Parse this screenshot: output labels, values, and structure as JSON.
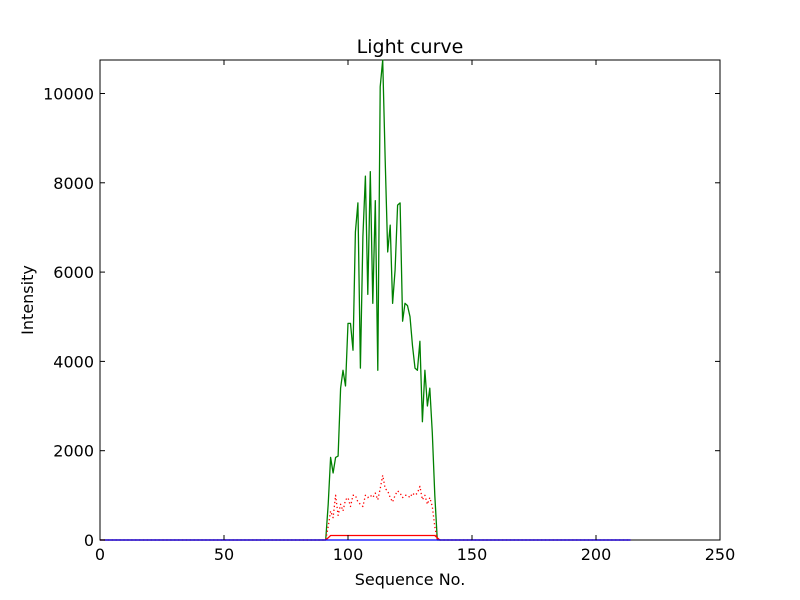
{
  "chart_data": {
    "type": "line",
    "title": "Light curve",
    "xlabel": "Sequence No.",
    "ylabel": "Intensity",
    "xlim": [
      0,
      250
    ],
    "ylim": [
      0,
      10750
    ],
    "xticks": [
      0,
      50,
      100,
      150,
      200,
      250
    ],
    "yticks": [
      0,
      2000,
      4000,
      6000,
      8000,
      10000
    ],
    "grid": false,
    "legend": "none",
    "series": [
      {
        "style": "solid",
        "color": "#008000",
        "x": [
          0,
          91,
          92,
          93,
          94,
          95,
          96,
          97,
          98,
          99,
          100,
          101,
          102,
          103,
          104,
          105,
          106,
          107,
          108,
          109,
          110,
          111,
          112,
          113,
          114,
          115,
          116,
          117,
          118,
          119,
          120,
          121,
          122,
          123,
          124,
          125,
          126,
          127,
          128,
          129,
          130,
          131,
          132,
          133,
          134,
          135,
          136,
          137,
          214
        ],
        "y": [
          0,
          0,
          800,
          1850,
          1500,
          1850,
          1880,
          3400,
          3800,
          3450,
          4850,
          4850,
          4250,
          6900,
          7550,
          3850,
          6800,
          8150,
          5500,
          8250,
          5300,
          7600,
          3800,
          10150,
          10750,
          8500,
          6450,
          7050,
          5300,
          6050,
          7500,
          7550,
          4900,
          5300,
          5250,
          5000,
          4350,
          3850,
          3800,
          4450,
          2650,
          3800,
          3000,
          3400,
          2400,
          1000,
          0,
          0,
          0
        ]
      },
      {
        "style": "dotted",
        "color": "#ff0000",
        "x": [
          0,
          91,
          92,
          93,
          94,
          95,
          96,
          97,
          98,
          99,
          100,
          101,
          102,
          103,
          104,
          105,
          106,
          107,
          108,
          109,
          110,
          111,
          112,
          113,
          114,
          115,
          116,
          117,
          118,
          119,
          120,
          121,
          122,
          123,
          124,
          125,
          126,
          127,
          128,
          129,
          130,
          131,
          132,
          133,
          134,
          135,
          136,
          137,
          214
        ],
        "y": [
          0,
          0,
          300,
          650,
          500,
          1000,
          550,
          800,
          650,
          900,
          950,
          750,
          1000,
          1000,
          850,
          800,
          750,
          1000,
          950,
          1000,
          950,
          1050,
          900,
          1150,
          1450,
          1150,
          1100,
          950,
          850,
          1000,
          1100,
          1050,
          950,
          1000,
          1000,
          950,
          1050,
          1000,
          1050,
          1200,
          900,
          1000,
          800,
          950,
          750,
          300,
          0,
          0,
          0
        ]
      },
      {
        "style": "solid",
        "color": "#ff0000",
        "x": [
          0,
          91,
          92,
          93,
          135,
          136,
          137,
          214
        ],
        "y": [
          0,
          0,
          50,
          100,
          100,
          50,
          0,
          0
        ]
      },
      {
        "style": "solid",
        "color": "#0000ff",
        "x": [
          0,
          214
        ],
        "y": [
          0,
          0
        ]
      }
    ]
  }
}
